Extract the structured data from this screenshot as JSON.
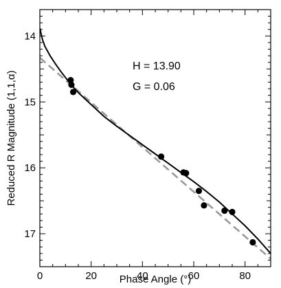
{
  "chart_data": {
    "type": "scatter",
    "xlabel": "Phase Angle (°)",
    "ylabel": "Reduced R Magnitude (1,1,α)",
    "xlim": [
      0,
      90
    ],
    "ylim": [
      17.5,
      13.6
    ],
    "y_inverted": true,
    "x_ticks": [
      0,
      20,
      40,
      60,
      80
    ],
    "y_ticks": [
      14,
      15,
      16,
      17
    ],
    "grid": false,
    "annotations": [
      "H = 13.90",
      "G = 0.06"
    ],
    "points": [
      {
        "x": 12.0,
        "y": 14.67
      },
      {
        "x": 12.3,
        "y": 14.74
      },
      {
        "x": 13.0,
        "y": 14.85
      },
      {
        "x": 47.3,
        "y": 15.83
      },
      {
        "x": 56.0,
        "y": 16.07
      },
      {
        "x": 57.0,
        "y": 16.08
      },
      {
        "x": 62.0,
        "y": 16.35
      },
      {
        "x": 64.0,
        "y": 16.57
      },
      {
        "x": 72.0,
        "y": 16.65
      },
      {
        "x": 75.0,
        "y": 16.67
      },
      {
        "x": 83.0,
        "y": 17.13
      }
    ],
    "solid_fit_curve": [
      [
        0,
        13.88
      ],
      [
        1,
        14.05
      ],
      [
        2,
        14.16
      ],
      [
        4,
        14.3
      ],
      [
        6,
        14.42
      ],
      [
        8,
        14.53
      ],
      [
        10,
        14.63
      ],
      [
        12,
        14.73
      ],
      [
        15,
        14.86
      ],
      [
        20,
        15.04
      ],
      [
        25,
        15.22
      ],
      [
        30,
        15.37
      ],
      [
        35,
        15.51
      ],
      [
        40,
        15.65
      ],
      [
        45,
        15.79
      ],
      [
        50,
        15.93
      ],
      [
        55,
        16.07
      ],
      [
        60,
        16.21
      ],
      [
        65,
        16.36
      ],
      [
        70,
        16.52
      ],
      [
        75,
        16.7
      ],
      [
        80,
        16.88
      ],
      [
        85,
        17.08
      ],
      [
        90,
        17.3
      ]
    ],
    "dashed_fit_line": [
      [
        0,
        14.33
      ],
      [
        90,
        17.38
      ]
    ],
    "colors": {
      "points": "#000000",
      "solid_curve": "#000000",
      "dashed_line": "#999999"
    }
  }
}
